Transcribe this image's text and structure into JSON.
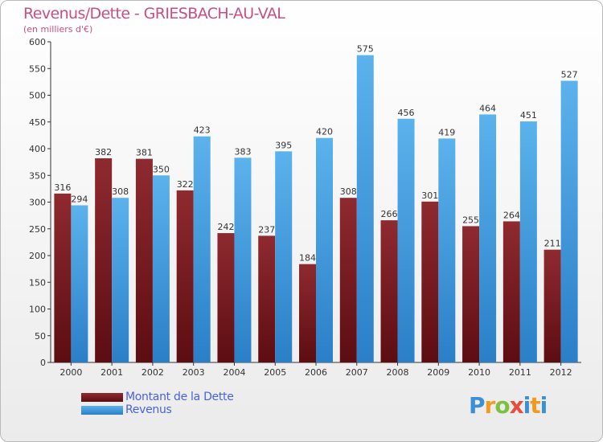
{
  "title": "Revenus/Dette - GRIESBACH-AU-VAL",
  "subtitle": "(en milliers d'€)",
  "legend": {
    "debt_label": "Montant de la Dette",
    "revenue_label": "Revenus"
  },
  "logo_text": "Proxiti",
  "colors": {
    "debt": "#7a1a20",
    "revenue": "#3a95dc",
    "title": "#c84f86"
  },
  "chart_data": {
    "type": "bar",
    "title": "Revenus/Dette - GRIESBACH-AU-VAL",
    "subtitle": "(en milliers d'€)",
    "categories": [
      "2000",
      "2001",
      "2002",
      "2003",
      "2004",
      "2005",
      "2006",
      "2007",
      "2008",
      "2009",
      "2010",
      "2011",
      "2012"
    ],
    "series": [
      {
        "name": "Montant de la Dette",
        "values": [
          316,
          382,
          381,
          322,
          242,
          237,
          184,
          308,
          266,
          301,
          255,
          264,
          211
        ]
      },
      {
        "name": "Revenus",
        "values": [
          294,
          308,
          350,
          423,
          383,
          395,
          420,
          575,
          456,
          419,
          464,
          451,
          527
        ]
      }
    ],
    "ylim": [
      0,
      600
    ],
    "yticks": [
      0,
      50,
      100,
      150,
      200,
      250,
      300,
      350,
      400,
      450,
      500,
      550,
      600
    ],
    "grid": false,
    "legend_position": "bottom-left"
  }
}
